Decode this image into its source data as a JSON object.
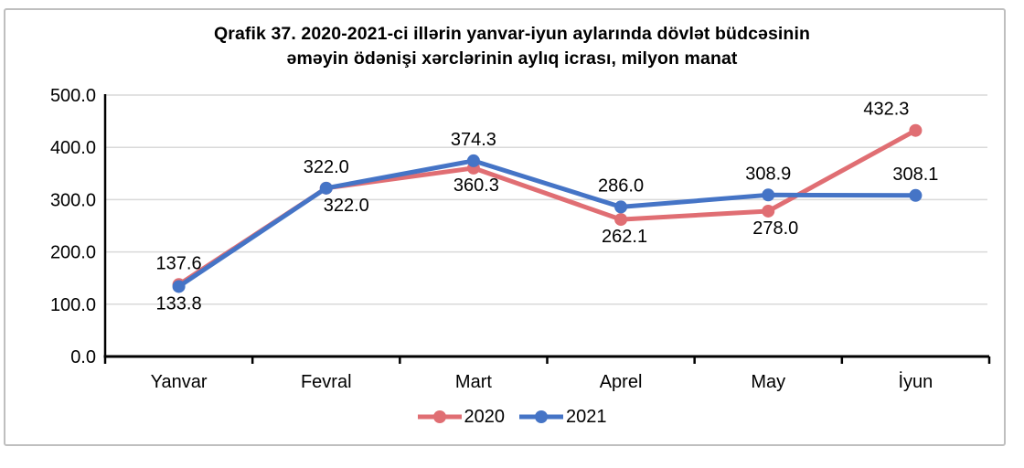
{
  "chart_data": {
    "type": "line",
    "title": "Qrafik 37. 2020-2021-ci illərin yanvar-iyun aylarında dövlət büdcəsinin əməyin ödənişi xərclərinin aylıq icrası, milyon manat",
    "title_lines": [
      "Qrafik 37. 2020-2021-ci illərin yanvar-iyun aylarında dövlət büdcəsinin",
      "əməyin ödənişi xərclərinin aylıq icrası, milyon manat"
    ],
    "categories": [
      "Yanvar",
      "Fevral",
      "Mart",
      "Aprel",
      "May",
      "İyun"
    ],
    "series": [
      {
        "name": "2020",
        "color": "#e06e73",
        "values": [
          137.6,
          322.0,
          360.3,
          262.1,
          278.0,
          432.3
        ],
        "label_positions": [
          "above",
          "below",
          "below",
          "below",
          "below",
          "above"
        ],
        "label_dx": [
          0,
          22,
          3,
          4,
          8,
          -32
        ]
      },
      {
        "name": "2021",
        "color": "#4574c6",
        "values": [
          133.8,
          322.0,
          374.3,
          286.0,
          308.9,
          308.1
        ],
        "label_positions": [
          "below",
          "above",
          "above",
          "above",
          "above",
          "above"
        ],
        "label_dx": [
          0,
          0,
          0,
          0,
          0,
          0
        ]
      }
    ],
    "ylim": [
      0,
      500
    ],
    "ytick_step": 100,
    "ytick_labels": [
      "0.0",
      "100.0",
      "200.0",
      "300.0",
      "400.0",
      "500.0"
    ],
    "grid": true,
    "legend_position": "bottom",
    "colors": {
      "grid": "#d9d9d9",
      "axis": "#000000",
      "text": "#000000",
      "frame_border": "#bfbfbf"
    }
  }
}
